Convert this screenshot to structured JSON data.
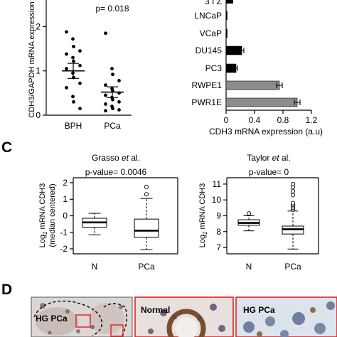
{
  "panels": {
    "C": "C",
    "D": "D"
  },
  "chart_data": [
    {
      "type": "scatter",
      "ylabel": "CDH3/GAPDH mRNA expression",
      "ylim": [
        0,
        2.6
      ],
      "yticks": [
        "0",
        "1",
        "2"
      ],
      "categories": [
        "BPH",
        "PCa"
      ],
      "annotation": "p= 0.018",
      "groups": [
        {
          "name": "BPH",
          "mean": 1.0,
          "sem": 0.17,
          "values": [
            1.88,
            1.72,
            1.55,
            1.45,
            1.38,
            1.3,
            1.22,
            1.12,
            1.05,
            0.95,
            0.85,
            0.72,
            0.62,
            0.42,
            0.3,
            0.15
          ]
        },
        {
          "name": "PCa",
          "mean": 0.52,
          "sem": 0.12,
          "values": [
            1.85,
            1.05,
            0.92,
            0.78,
            0.68,
            0.6,
            0.55,
            0.5,
            0.45,
            0.4,
            0.35,
            0.3,
            0.25,
            0.2,
            0.15,
            0.12,
            0.1
          ]
        }
      ]
    },
    {
      "type": "bar",
      "orientation": "horizontal",
      "xlabel": "CDH3 mRNA expression (a.u)",
      "xlim": [
        0,
        1.2
      ],
      "xticks": [
        "0",
        "0.4",
        "0.8",
        "1.2"
      ],
      "categories": [
        "LNCaP",
        "VCaP",
        "DU145",
        "PC3",
        "RWPE1",
        "PWR1E"
      ],
      "partial_top_label": "3 I Z",
      "values": [
        0.01,
        0.01,
        0.22,
        0.14,
        0.75,
        1.0
      ],
      "errors": [
        0.0,
        0.0,
        0.03,
        0.02,
        0.04,
        0.04
      ],
      "colors": [
        "#000000",
        "#000000",
        "#000000",
        "#000000",
        "#8c8c8c",
        "#8c8c8c"
      ],
      "partial_top_value": 0.1
    },
    {
      "type": "box",
      "title_pre": "Grasso ",
      "title_ital": "et",
      "title_post": " al.",
      "annotation": "p-value= 0.0046",
      "ylabel_line1": "Log2 mRNA CDH3",
      "ylabel_line2": "(median centered)",
      "ylim": [
        -2.3,
        2.3
      ],
      "yticks": [
        "-2",
        "-1",
        "0",
        "1",
        "2"
      ],
      "categories": [
        "N",
        "PCa"
      ],
      "boxes": [
        {
          "whisker_low": -1.15,
          "q1": -0.7,
          "median": -0.4,
          "q3": -0.15,
          "whisker_high": 0.15,
          "outliers": []
        },
        {
          "whisker_low": -2.05,
          "q1": -1.3,
          "median": -0.9,
          "q3": -0.2,
          "whisker_high": 1.05,
          "outliers": [
            1.3,
            1.75
          ]
        }
      ]
    },
    {
      "type": "box",
      "title_pre": "Taylor ",
      "title_ital": "et",
      "title_post": " al.",
      "annotation": "p-value= 0",
      "ylabel_line1": "Log2 mRNA CDH3",
      "ylim": [
        6.6,
        11.4
      ],
      "yticks": [
        "7",
        "8",
        "9",
        "10",
        "11"
      ],
      "categories": [
        "N",
        "PCa"
      ],
      "boxes": [
        {
          "whisker_low": 8.05,
          "q1": 8.4,
          "median": 8.55,
          "q3": 8.75,
          "whisker_high": 9.0,
          "outliers": [
            9.15
          ]
        },
        {
          "whisker_low": 6.9,
          "q1": 7.85,
          "median": 8.15,
          "q3": 8.35,
          "whisker_high": 9.3,
          "outliers": [
            9.4,
            9.5,
            9.6,
            9.7,
            9.8,
            10.3,
            10.55,
            10.8,
            11.0
          ]
        }
      ]
    }
  ],
  "histology": {
    "label_hg": "HG PCa",
    "label_normal": "Normal",
    "label_hg2": "HG PCa"
  }
}
